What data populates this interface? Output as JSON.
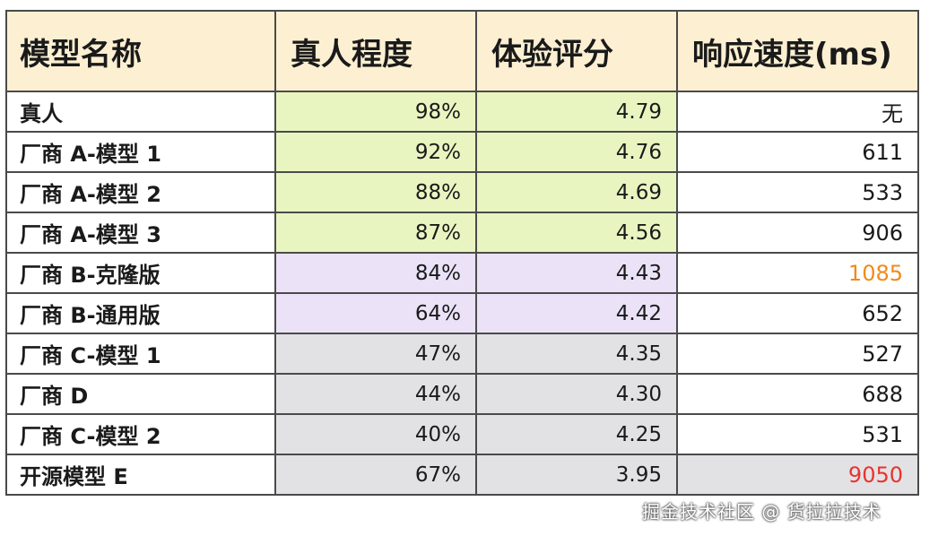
{
  "table": {
    "headers": [
      "模型名称",
      "真人程度",
      "体验评分",
      "响应速度(ms)"
    ],
    "rows": [
      {
        "name": "真人",
        "realism": "98%",
        "score": "4.79",
        "speed": "无",
        "group": "a"
      },
      {
        "name": "厂商 A-模型 1",
        "realism": "92%",
        "score": "4.76",
        "speed": "611",
        "group": "a"
      },
      {
        "name": "厂商 A-模型 2",
        "realism": "88%",
        "score": "4.69",
        "speed": "533",
        "group": "a"
      },
      {
        "name": "厂商 A-模型 3",
        "realism": "87%",
        "score": "4.56",
        "speed": "906",
        "group": "a"
      },
      {
        "name": "厂商 B-克隆版",
        "realism": "84%",
        "score": "4.43",
        "speed": "1085",
        "group": "b",
        "speed_color": "#f08a1c"
      },
      {
        "name": "厂商 B-通用版",
        "realism": "64%",
        "score": "4.42",
        "speed": "652",
        "group": "b"
      },
      {
        "name": "厂商 C-模型 1",
        "realism": "47%",
        "score": "4.35",
        "speed": "527",
        "group": "c"
      },
      {
        "name": "厂商 D",
        "realism": "44%",
        "score": "4.30",
        "speed": "688",
        "group": "c"
      },
      {
        "name": "厂商 C-模型 2",
        "realism": "40%",
        "score": "4.25",
        "speed": "531",
        "group": "c"
      },
      {
        "name": "开源模型 E",
        "realism": "67%",
        "score": "3.95",
        "speed": "9050",
        "group": "c",
        "speed_color": "#e8332e",
        "speed_bg": "#e2e2e4"
      }
    ]
  },
  "colors": {
    "header_bg": "#fdf0d2",
    "group_a_bg": "#e8f5c0",
    "group_b_bg": "#ebe2f8",
    "group_c_bg": "#e2e2e4"
  },
  "watermark": "掘金技术社区 @ 货拉拉技术"
}
